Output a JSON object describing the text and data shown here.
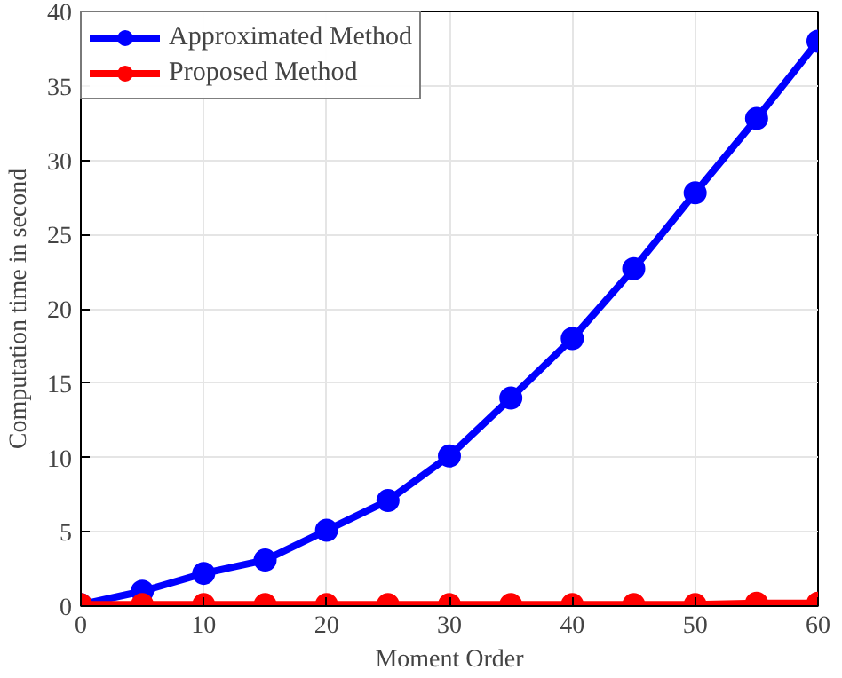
{
  "chart_data": {
    "type": "line",
    "xlabel": "Moment Order",
    "ylabel": "Computation time in second",
    "x": [
      0,
      5,
      10,
      15,
      20,
      25,
      30,
      35,
      40,
      45,
      50,
      55,
      60
    ],
    "series": [
      {
        "name": "Approximated Method",
        "color": "#0000ff",
        "values": [
          0.1,
          1.0,
          2.2,
          3.1,
          5.1,
          7.1,
          10.1,
          14.0,
          18.0,
          22.7,
          27.8,
          32.8,
          38.0
        ]
      },
      {
        "name": "Proposed Method",
        "color": "#ff0000",
        "values": [
          0.1,
          0.1,
          0.1,
          0.1,
          0.1,
          0.1,
          0.1,
          0.1,
          0.1,
          0.1,
          0.1,
          0.2,
          0.2
        ]
      }
    ],
    "xlim": [
      0,
      60
    ],
    "ylim": [
      0,
      40
    ],
    "xticks": [
      0,
      10,
      20,
      30,
      40,
      50,
      60
    ],
    "yticks": [
      0,
      5,
      10,
      15,
      20,
      25,
      30,
      35,
      40
    ],
    "grid": true,
    "legend": "top left",
    "marker": "circle",
    "line_style": "solid"
  }
}
